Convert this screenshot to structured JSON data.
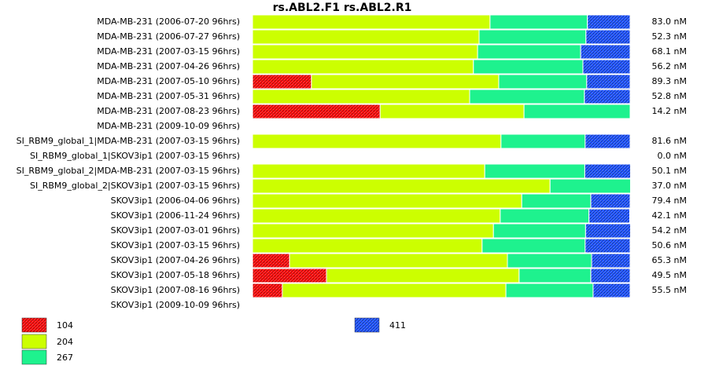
{
  "chart_data": {
    "type": "stacked-barh",
    "title": "rs.ABL2.F1  rs.ABL2.R1",
    "xlim": [
      0,
      100
    ],
    "categories": [
      "MDA-MB-231 (2006-07-20 96hrs)",
      "MDA-MB-231 (2006-07-27 96hrs)",
      "MDA-MB-231 (2007-03-15 96hrs)",
      "MDA-MB-231 (2007-04-26 96hrs)",
      "MDA-MB-231 (2007-05-10 96hrs)",
      "MDA-MB-231 (2007-05-31 96hrs)",
      "MDA-MB-231 (2007-08-23 96hrs)",
      "MDA-MB-231 (2009-10-09 96hrs)",
      "SI_RBM9_global_1|MDA-MB-231 (2007-03-15 96hrs)",
      "SI_RBM9_global_1|SKOV3ip1 (2007-03-15 96hrs)",
      "SI_RBM9_global_2|MDA-MB-231 (2007-03-15 96hrs)",
      "SI_RBM9_global_2|SKOV3ip1 (2007-03-15 96hrs)",
      "SKOV3ip1 (2006-04-06 96hrs)",
      "SKOV3ip1 (2006-11-24 96hrs)",
      "SKOV3ip1 (2007-03-01 96hrs)",
      "SKOV3ip1 (2007-03-15 96hrs)",
      "SKOV3ip1 (2007-04-26 96hrs)",
      "SKOV3ip1 (2007-05-18 96hrs)",
      "SKOV3ip1 (2007-08-16 96hrs)",
      "SKOV3ip1 (2009-10-09 96hrs)"
    ],
    "row_annotations": [
      "83.0 nM",
      "52.3 nM",
      "68.1 nM",
      "56.2 nM",
      "89.3 nM",
      "52.8 nM",
      "14.2 nM",
      null,
      "81.6 nM",
      "0.0 nM",
      "50.1 nM",
      "37.0 nM",
      "79.4 nM",
      "42.1 nM",
      "54.2 nM",
      "50.6 nM",
      "65.3 nM",
      "49.5 nM",
      "55.5 nM",
      null
    ],
    "series": [
      {
        "name": "104",
        "color": "#ff1010",
        "pattern": "crosshatch",
        "values": [
          null,
          null,
          null,
          null,
          15.6,
          null,
          33.8,
          null,
          null,
          null,
          null,
          null,
          null,
          null,
          null,
          null,
          9.8,
          19.6,
          7.9,
          null
        ]
      },
      {
        "name": "204",
        "color": "#ccff00",
        "values": [
          62.9,
          60.0,
          59.6,
          58.5,
          49.6,
          57.5,
          38.1,
          null,
          65.8,
          null,
          61.5,
          78.8,
          71.3,
          65.6,
          63.8,
          60.8,
          57.7,
          51.0,
          59.2,
          null
        ]
      },
      {
        "name": "267",
        "color": "#1ef28e",
        "values": [
          25.8,
          28.3,
          27.3,
          29.0,
          23.3,
          30.4,
          28.1,
          null,
          22.3,
          null,
          26.5,
          21.3,
          18.3,
          23.5,
          24.4,
          27.3,
          22.3,
          19.0,
          23.1,
          null
        ]
      },
      {
        "name": "411",
        "color": "#2255ff",
        "pattern": "crosshatch",
        "values": [
          11.3,
          11.7,
          13.1,
          12.5,
          11.5,
          12.1,
          null,
          null,
          11.9,
          null,
          12.1,
          null,
          10.4,
          10.8,
          11.9,
          11.9,
          10.2,
          10.4,
          9.8,
          null
        ]
      }
    ]
  }
}
